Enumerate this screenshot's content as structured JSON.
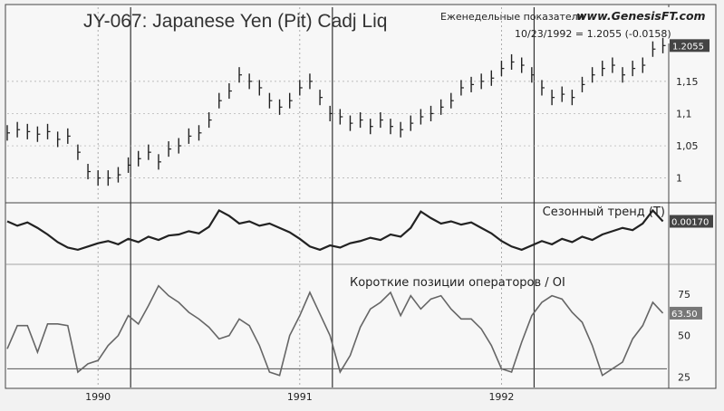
{
  "header": {
    "title": "JY-067:  Japanese Yen (Pit) Cadj Liq",
    "weekly_label": "Еженедельные показатели",
    "site": "www.GenesisFT.com",
    "readout": "10/23/1992 = 1.2055 (-0.0158)"
  },
  "chart_data": [
    {
      "type": "bar",
      "panel": "price",
      "title": "JY-067:  Japanese Yen (Pit) Cadj Liq",
      "ylim": [
        0.97,
        1.22
      ],
      "yticks": [
        "1",
        "1,05",
        "1,1",
        "1,15"
      ],
      "ytick_values": [
        1.0,
        1.05,
        1.1,
        1.15
      ],
      "last_value_label": "1.2055",
      "xlim": [
        1989.55,
        1992.82
      ],
      "xticks": [
        "1990",
        "1991",
        "1992"
      ],
      "xtick_values": [
        1990.0,
        1991.0,
        1992.0
      ],
      "grid": true,
      "series": [
        {
          "x": [
            1989.55,
            1989.6,
            1989.65,
            1989.7,
            1989.75,
            1989.8,
            1989.85,
            1989.9,
            1989.95,
            1990.0,
            1990.05,
            1990.1,
            1990.15,
            1990.2,
            1990.25,
            1990.3,
            1990.35,
            1990.4,
            1990.45,
            1990.5,
            1990.55,
            1990.6,
            1990.65,
            1990.7,
            1990.75,
            1990.8,
            1990.85,
            1990.9,
            1990.95,
            1991.0,
            1991.05,
            1991.1,
            1991.15,
            1991.2,
            1991.25,
            1991.3,
            1991.35,
            1991.4,
            1991.45,
            1991.5,
            1991.55,
            1991.6,
            1991.65,
            1991.7,
            1991.75,
            1991.8,
            1991.85,
            1991.9,
            1991.95,
            1992.0,
            1992.05,
            1992.1,
            1992.15,
            1992.2,
            1992.25,
            1992.3,
            1992.35,
            1992.4,
            1992.45,
            1992.5,
            1992.55,
            1992.6,
            1992.65,
            1992.7,
            1992.75,
            1992.8
          ],
          "values": [
            1.07,
            1.075,
            1.072,
            1.068,
            1.072,
            1.06,
            1.065,
            1.04,
            1.01,
            1.0,
            1.0,
            1.005,
            1.02,
            1.03,
            1.04,
            1.025,
            1.045,
            1.05,
            1.065,
            1.07,
            1.09,
            1.12,
            1.135,
            1.16,
            1.15,
            1.14,
            1.12,
            1.11,
            1.12,
            1.14,
            1.15,
            1.125,
            1.1,
            1.095,
            1.085,
            1.09,
            1.08,
            1.09,
            1.08,
            1.075,
            1.085,
            1.095,
            1.1,
            1.11,
            1.12,
            1.14,
            1.145,
            1.15,
            1.155,
            1.17,
            1.18,
            1.175,
            1.16,
            1.14,
            1.125,
            1.13,
            1.125,
            1.145,
            1.16,
            1.17,
            1.175,
            1.16,
            1.17,
            1.175,
            1.2,
            1.2055
          ]
        }
      ]
    },
    {
      "type": "line",
      "panel": "seasonal",
      "title": "Сезонный тренд (T)",
      "last_value_label": "0.00170",
      "xlim": [
        1989.55,
        1992.82
      ],
      "ylim": [
        -1.2,
        1.2
      ],
      "series": [
        {
          "x": [
            1989.55,
            1989.6,
            1989.65,
            1989.7,
            1989.75,
            1989.8,
            1989.85,
            1989.9,
            1989.95,
            1990.0,
            1990.05,
            1990.1,
            1990.15,
            1990.2,
            1990.25,
            1990.3,
            1990.35,
            1990.4,
            1990.45,
            1990.5,
            1990.55,
            1990.6,
            1990.65,
            1990.7,
            1990.75,
            1990.8,
            1990.85,
            1990.9,
            1990.95,
            1991.0,
            1991.05,
            1991.1,
            1991.15,
            1991.2,
            1991.25,
            1991.3,
            1991.35,
            1991.4,
            1991.45,
            1991.5,
            1991.55,
            1991.6,
            1991.65,
            1991.7,
            1991.75,
            1991.8,
            1991.85,
            1991.9,
            1991.95,
            1992.0,
            1992.05,
            1992.1,
            1992.15,
            1992.2,
            1992.25,
            1992.3,
            1992.35,
            1992.4,
            1992.45,
            1992.5,
            1992.55,
            1992.6,
            1992.65,
            1992.7,
            1992.75,
            1992.8
          ],
          "values": [
            0.6,
            0.4,
            0.55,
            0.3,
            0.0,
            -0.35,
            -0.6,
            -0.7,
            -0.55,
            -0.4,
            -0.3,
            -0.45,
            -0.2,
            -0.35,
            -0.1,
            -0.25,
            -0.05,
            0.0,
            0.15,
            0.05,
            0.35,
            1.1,
            0.85,
            0.5,
            0.6,
            0.4,
            0.5,
            0.3,
            0.1,
            -0.2,
            -0.55,
            -0.7,
            -0.5,
            -0.6,
            -0.4,
            -0.3,
            -0.15,
            -0.25,
            0.0,
            -0.1,
            0.3,
            1.05,
            0.75,
            0.5,
            0.6,
            0.45,
            0.55,
            0.3,
            0.05,
            -0.3,
            -0.55,
            -0.7,
            -0.5,
            -0.3,
            -0.45,
            -0.2,
            -0.35,
            -0.1,
            -0.25,
            0.0,
            0.15,
            0.3,
            0.2,
            0.5,
            1.1,
            0.6
          ]
        }
      ]
    },
    {
      "type": "line",
      "panel": "commercials",
      "title": "Короткие позиции операторов / OI",
      "ylim": [
        22,
        82
      ],
      "yticks": [
        "25",
        "50",
        "75"
      ],
      "ytick_values": [
        25,
        50,
        75
      ],
      "last_value_label": "63.50",
      "reference_line": 30,
      "xlim": [
        1989.55,
        1992.82
      ],
      "xticks": [
        "1990",
        "1991",
        "1992"
      ],
      "xtick_values": [
        1990.0,
        1991.0,
        1992.0
      ],
      "series": [
        {
          "x": [
            1989.55,
            1989.6,
            1989.65,
            1989.7,
            1989.75,
            1989.8,
            1989.85,
            1989.9,
            1989.95,
            1990.0,
            1990.05,
            1990.1,
            1990.15,
            1990.2,
            1990.25,
            1990.3,
            1990.35,
            1990.4,
            1990.45,
            1990.5,
            1990.55,
            1990.6,
            1990.65,
            1990.7,
            1990.75,
            1990.8,
            1990.85,
            1990.9,
            1990.95,
            1991.0,
            1991.05,
            1991.1,
            1991.15,
            1991.2,
            1991.25,
            1991.3,
            1991.35,
            1991.4,
            1991.45,
            1991.5,
            1991.55,
            1991.6,
            1991.65,
            1991.7,
            1991.75,
            1991.8,
            1991.85,
            1991.9,
            1991.95,
            1992.0,
            1992.05,
            1992.1,
            1992.15,
            1992.2,
            1992.25,
            1992.3,
            1992.35,
            1992.4,
            1992.45,
            1992.5,
            1992.55,
            1992.6,
            1992.65,
            1992.7,
            1992.75,
            1992.8
          ],
          "values": [
            42,
            56,
            56,
            40,
            57,
            57,
            56,
            28,
            33,
            35,
            44,
            50,
            62,
            57,
            68,
            80,
            74,
            70,
            64,
            60,
            55,
            48,
            50,
            60,
            56,
            44,
            28,
            26,
            50,
            62,
            76,
            63,
            50,
            28,
            38,
            55,
            66,
            70,
            76,
            62,
            74,
            66,
            72,
            74,
            66,
            60,
            60,
            54,
            44,
            30,
            28,
            46,
            62,
            70,
            74,
            72,
            64,
            58,
            44,
            26,
            30,
            34,
            48,
            56,
            70,
            63.5
          ]
        }
      ]
    }
  ]
}
